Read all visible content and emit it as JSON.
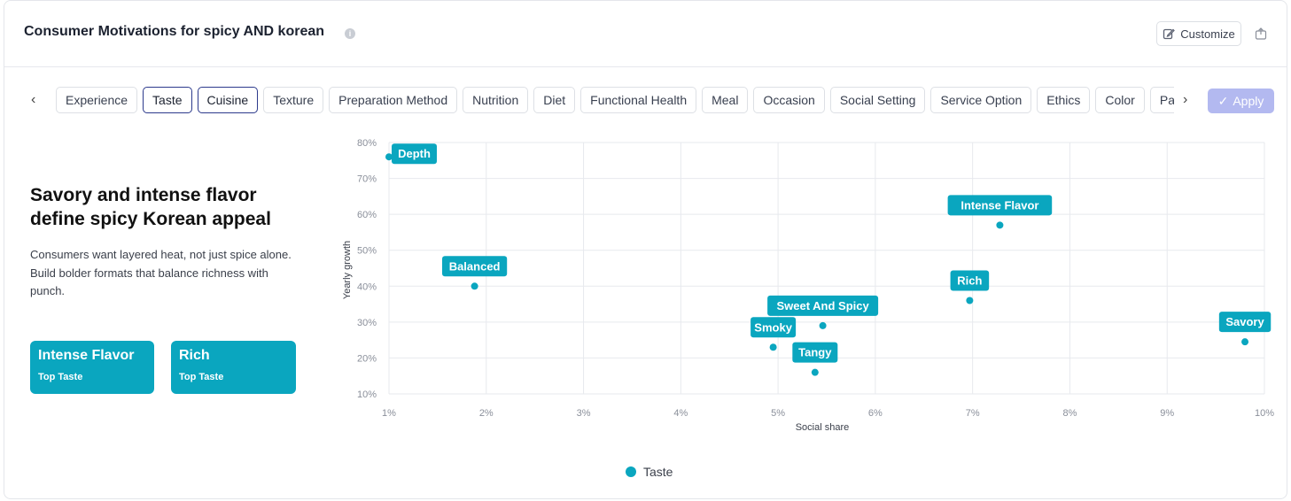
{
  "header": {
    "title": "Consumer Motivations for spicy AND korean",
    "info_icon": "info-icon",
    "customize_label": "Customize",
    "customize_icon": "edit-icon",
    "export_icon": "export-chart-icon"
  },
  "filters": {
    "tabs": [
      {
        "label": "Experience",
        "selected": false
      },
      {
        "label": "Taste",
        "selected": true
      },
      {
        "label": "Cuisine",
        "selected": true
      },
      {
        "label": "Texture",
        "selected": false
      },
      {
        "label": "Preparation Method",
        "selected": false
      },
      {
        "label": "Nutrition",
        "selected": false
      },
      {
        "label": "Diet",
        "selected": false
      },
      {
        "label": "Functional Health",
        "selected": false
      },
      {
        "label": "Meal",
        "selected": false
      },
      {
        "label": "Occasion",
        "selected": false
      },
      {
        "label": "Social Setting",
        "selected": false
      },
      {
        "label": "Service Option",
        "selected": false
      },
      {
        "label": "Ethics",
        "selected": false
      },
      {
        "label": "Color",
        "selected": false
      },
      {
        "label": "Packag",
        "selected": false
      }
    ],
    "apply_label": "Apply",
    "prev_icon": "chevron-left-icon",
    "next_icon": "chevron-right-icon",
    "apply_icon": "check-icon"
  },
  "insight": {
    "headline": "Savory and intense flavor define spicy Korean appeal",
    "description": "Consumers want layered heat, not just spice alone. Build bolder formats that balance richness with punch.",
    "cards": [
      {
        "title": "Intense Flavor",
        "subtitle": "Top Taste"
      },
      {
        "title": "Rich",
        "subtitle": "Top Taste"
      }
    ]
  },
  "colors": {
    "accent": "#0aa6bf",
    "apply": "#b3b9f0",
    "selected_border": "#2c3a8c"
  },
  "chart_data": {
    "type": "scatter",
    "xlabel": "Social share",
    "ylabel": "Yearly growth",
    "xlim": [
      1,
      10
    ],
    "ylim": [
      10,
      80
    ],
    "x_ticks": [
      "1%",
      "2%",
      "3%",
      "4%",
      "5%",
      "6%",
      "7%",
      "8%",
      "9%",
      "10%"
    ],
    "y_ticks": [
      "10%",
      "20%",
      "30%",
      "40%",
      "50%",
      "60%",
      "70%",
      "80%"
    ],
    "grid": true,
    "legend_position": "bottom-center",
    "series": [
      {
        "name": "Taste",
        "points": [
          {
            "label": "Depth",
            "x": 1.0,
            "y": 76
          },
          {
            "label": "Intense Flavor",
            "x": 7.28,
            "y": 57
          },
          {
            "label": "Balanced",
            "x": 1.88,
            "y": 40
          },
          {
            "label": "Rich",
            "x": 6.97,
            "y": 36
          },
          {
            "label": "Sweet And Spicy",
            "x": 5.46,
            "y": 29
          },
          {
            "label": "Smoky",
            "x": 4.95,
            "y": 23
          },
          {
            "label": "Tangy",
            "x": 5.38,
            "y": 16
          },
          {
            "label": "Savory",
            "x": 9.8,
            "y": 24.5
          }
        ]
      }
    ]
  }
}
